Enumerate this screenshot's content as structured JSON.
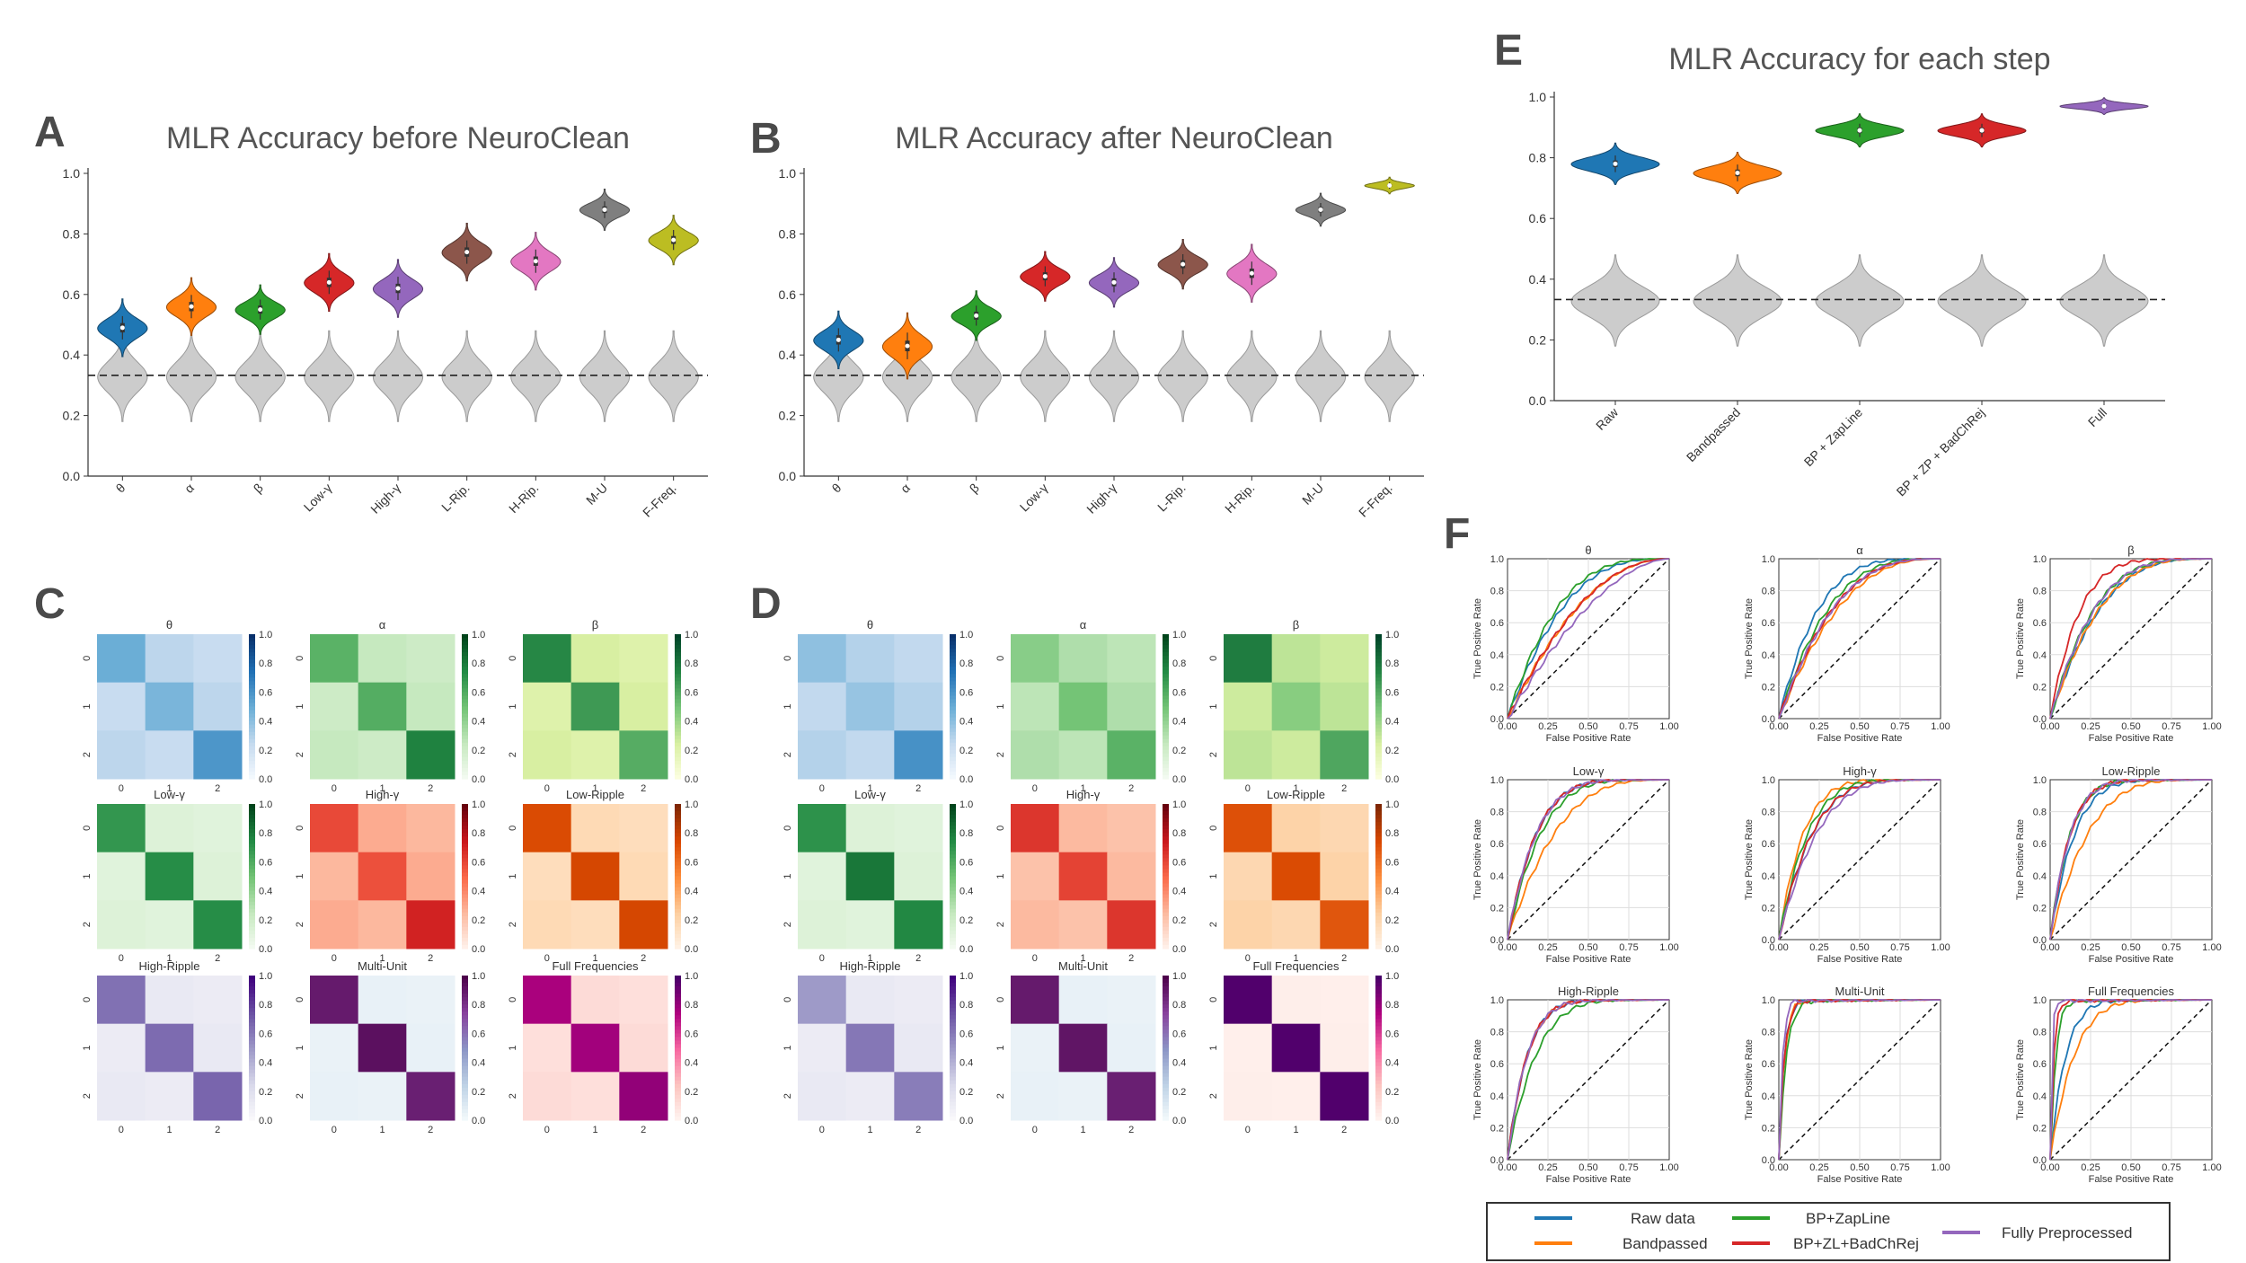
{
  "panel_labels": {
    "A": "A",
    "B": "B",
    "C": "C",
    "D": "D",
    "E": "E",
    "F": "F"
  },
  "colors": {
    "violins": [
      "#1f77b4",
      "#ff7f0e",
      "#2ca02c",
      "#d62728",
      "#9467bd",
      "#8c564b",
      "#e377c2",
      "#7f7f7f",
      "#bcbd22"
    ],
    "null_violin": "#cccccc",
    "roc_lines": [
      "#1f77b4",
      "#ff7f0e",
      "#2ca02c",
      "#d62728",
      "#9467bd"
    ]
  },
  "chart_data": [
    {
      "id": "A",
      "type": "violin",
      "title": "MLR Accuracy before NeuroClean",
      "categories": [
        "θ",
        "α",
        "β",
        "Low-γ",
        "High-γ",
        "L-Rip.",
        "H-Rip.",
        "M-U",
        "F-Freq."
      ],
      "medians": [
        0.49,
        0.56,
        0.55,
        0.64,
        0.62,
        0.74,
        0.71,
        0.88,
        0.78
      ],
      "spread": [
        0.07,
        0.07,
        0.06,
        0.07,
        0.07,
        0.07,
        0.07,
        0.05,
        0.06
      ],
      "null_median": 0.33,
      "chance_line": 0.333,
      "yticks": [
        "0.0",
        "0.2",
        "0.4",
        "0.6",
        "0.8",
        "1.0"
      ],
      "ylim": [
        0,
        1.0
      ]
    },
    {
      "id": "B",
      "type": "violin",
      "title": "MLR Accuracy after NeuroClean",
      "categories": [
        "θ",
        "α",
        "β",
        "Low-γ",
        "High-γ",
        "L-Rip.",
        "H-Rip.",
        "M-U",
        "F-Freq."
      ],
      "medians": [
        0.45,
        0.43,
        0.53,
        0.66,
        0.64,
        0.7,
        0.67,
        0.88,
        0.96
      ],
      "spread": [
        0.07,
        0.08,
        0.06,
        0.06,
        0.06,
        0.06,
        0.07,
        0.04,
        0.02
      ],
      "null_median": 0.33,
      "chance_line": 0.333,
      "yticks": [
        "0.0",
        "0.2",
        "0.4",
        "0.6",
        "0.8",
        "1.0"
      ],
      "ylim": [
        0,
        1.0
      ]
    },
    {
      "id": "E",
      "type": "violin",
      "title": "MLR Accuracy for each step",
      "categories": [
        "Raw",
        "Bandpassed",
        "BP + ZapLine",
        "BP + ZP + BadChRej",
        "Full"
      ],
      "medians": [
        0.78,
        0.75,
        0.89,
        0.89,
        0.97
      ],
      "spread": [
        0.05,
        0.05,
        0.04,
        0.04,
        0.02
      ],
      "colors": [
        "#1f77b4",
        "#ff7f0e",
        "#2ca02c",
        "#d62728",
        "#9467bd"
      ],
      "null_median": 0.33,
      "chance_line": 0.333,
      "yticks": [
        "0.0",
        "0.2",
        "0.4",
        "0.6",
        "0.8",
        "1.0"
      ],
      "ylim": [
        0,
        1.0
      ]
    },
    {
      "id": "C",
      "type": "heatmap",
      "cbar_ticks": [
        "0.0",
        "0.2",
        "0.4",
        "0.6",
        "0.8",
        "1.0"
      ],
      "axis_ticks": [
        "0",
        "1",
        "2"
      ],
      "matrices": [
        {
          "title": "θ",
          "cmap": "blue",
          "diag": [
            0.5,
            0.46,
            0.6
          ],
          "off": 0.24
        },
        {
          "title": "α",
          "cmap": "green",
          "diag": [
            0.58,
            0.6,
            0.78
          ],
          "off": 0.22
        },
        {
          "title": "β",
          "cmap": "yellowgreen",
          "diag": [
            0.74,
            0.67,
            0.6
          ],
          "off": 0.22
        },
        {
          "title": "Low-γ",
          "cmap": "green",
          "diag": [
            0.7,
            0.74,
            0.74
          ],
          "off": 0.12
        },
        {
          "title": "High-γ",
          "cmap": "red",
          "diag": [
            0.6,
            0.58,
            0.72
          ],
          "off": 0.26
        },
        {
          "title": "Low-Ripple",
          "cmap": "orange",
          "diag": [
            0.74,
            0.76,
            0.76
          ],
          "off": 0.16
        },
        {
          "title": "High-Ripple",
          "cmap": "purple",
          "diag": [
            0.64,
            0.66,
            0.68
          ],
          "off": 0.12
        },
        {
          "title": "Multi-Unit",
          "cmap": "bupurple",
          "diag": [
            0.9,
            0.94,
            0.88
          ],
          "off": 0.06
        },
        {
          "title": "Full Frequencies",
          "cmap": "magenta",
          "diag": [
            0.76,
            0.78,
            0.82
          ],
          "off": 0.12
        }
      ]
    },
    {
      "id": "D",
      "type": "heatmap",
      "cbar_ticks": [
        "0.0",
        "0.2",
        "0.4",
        "0.6",
        "0.8",
        "1.0"
      ],
      "axis_ticks": [
        "0",
        "1",
        "2"
      ],
      "matrices": [
        {
          "title": "θ",
          "cmap": "blue",
          "diag": [
            0.4,
            0.38,
            0.62
          ],
          "off": 0.26
        },
        {
          "title": "α",
          "cmap": "green",
          "diag": [
            0.44,
            0.5,
            0.58
          ],
          "off": 0.28
        },
        {
          "title": "β",
          "cmap": "yellowgreen",
          "diag": [
            0.78,
            0.46,
            0.62
          ],
          "off": 0.28
        },
        {
          "title": "Low-γ",
          "cmap": "green",
          "diag": [
            0.72,
            0.82,
            0.76
          ],
          "off": 0.12
        },
        {
          "title": "High-γ",
          "cmap": "red",
          "diag": [
            0.66,
            0.62,
            0.66
          ],
          "off": 0.22
        },
        {
          "title": "Low-Ripple",
          "cmap": "orange",
          "diag": [
            0.72,
            0.74,
            0.7
          ],
          "off": 0.2
        },
        {
          "title": "High-Ripple",
          "cmap": "purple",
          "diag": [
            0.5,
            0.62,
            0.6
          ],
          "off": 0.12
        },
        {
          "title": "Multi-Unit",
          "cmap": "bupurple",
          "diag": [
            0.9,
            0.92,
            0.88
          ],
          "off": 0.06
        },
        {
          "title": "Full Frequencies",
          "cmap": "magenta",
          "diag": [
            0.98,
            0.98,
            0.98
          ],
          "off": 0.04
        }
      ]
    },
    {
      "id": "F",
      "type": "line",
      "xlabel": "False Positive Rate",
      "ylabel": "True Positive Rate",
      "ticks": [
        "0.00",
        "0.25",
        "0.50",
        "0.75",
        "1.00"
      ],
      "yticks": [
        "0.0",
        "0.2",
        "0.4",
        "0.6",
        "0.8",
        "1.0"
      ],
      "series_names": [
        "Raw data",
        "Bandpassed",
        "BP+ZapLine",
        "BP+ZL+BadChRej",
        "Fully Preprocessed"
      ],
      "subplots": [
        {
          "title": "θ",
          "auc": [
            0.76,
            0.7,
            0.78,
            0.7,
            0.66
          ]
        },
        {
          "title": "α",
          "auc": [
            0.82,
            0.74,
            0.78,
            0.76,
            0.76
          ]
        },
        {
          "title": "β",
          "auc": [
            0.78,
            0.78,
            0.8,
            0.86,
            0.8
          ]
        },
        {
          "title": "Low-γ",
          "auc": [
            0.86,
            0.78,
            0.84,
            0.86,
            0.86
          ]
        },
        {
          "title": "High-γ",
          "auc": [
            0.84,
            0.88,
            0.86,
            0.84,
            0.82
          ]
        },
        {
          "title": "Low-Ripple",
          "auc": [
            0.88,
            0.82,
            0.9,
            0.9,
            0.9
          ]
        },
        {
          "title": "High-Ripple",
          "auc": [
            0.9,
            0.9,
            0.86,
            0.9,
            0.9
          ]
        },
        {
          "title": "Multi-Unit",
          "auc": [
            0.97,
            0.97,
            0.96,
            0.97,
            0.98
          ]
        },
        {
          "title": "Full Frequencies",
          "auc": [
            0.92,
            0.88,
            0.97,
            0.98,
            0.99
          ]
        }
      ]
    }
  ],
  "legend": {
    "items": [
      {
        "label": "Raw data",
        "color": "#1f77b4"
      },
      {
        "label": "Bandpassed",
        "color": "#ff7f0e"
      },
      {
        "label": "BP+ZapLine",
        "color": "#2ca02c"
      },
      {
        "label": "BP+ZL+BadChRej",
        "color": "#d62728"
      },
      {
        "label": "Fully Preprocessed",
        "color": "#9467bd"
      }
    ]
  }
}
